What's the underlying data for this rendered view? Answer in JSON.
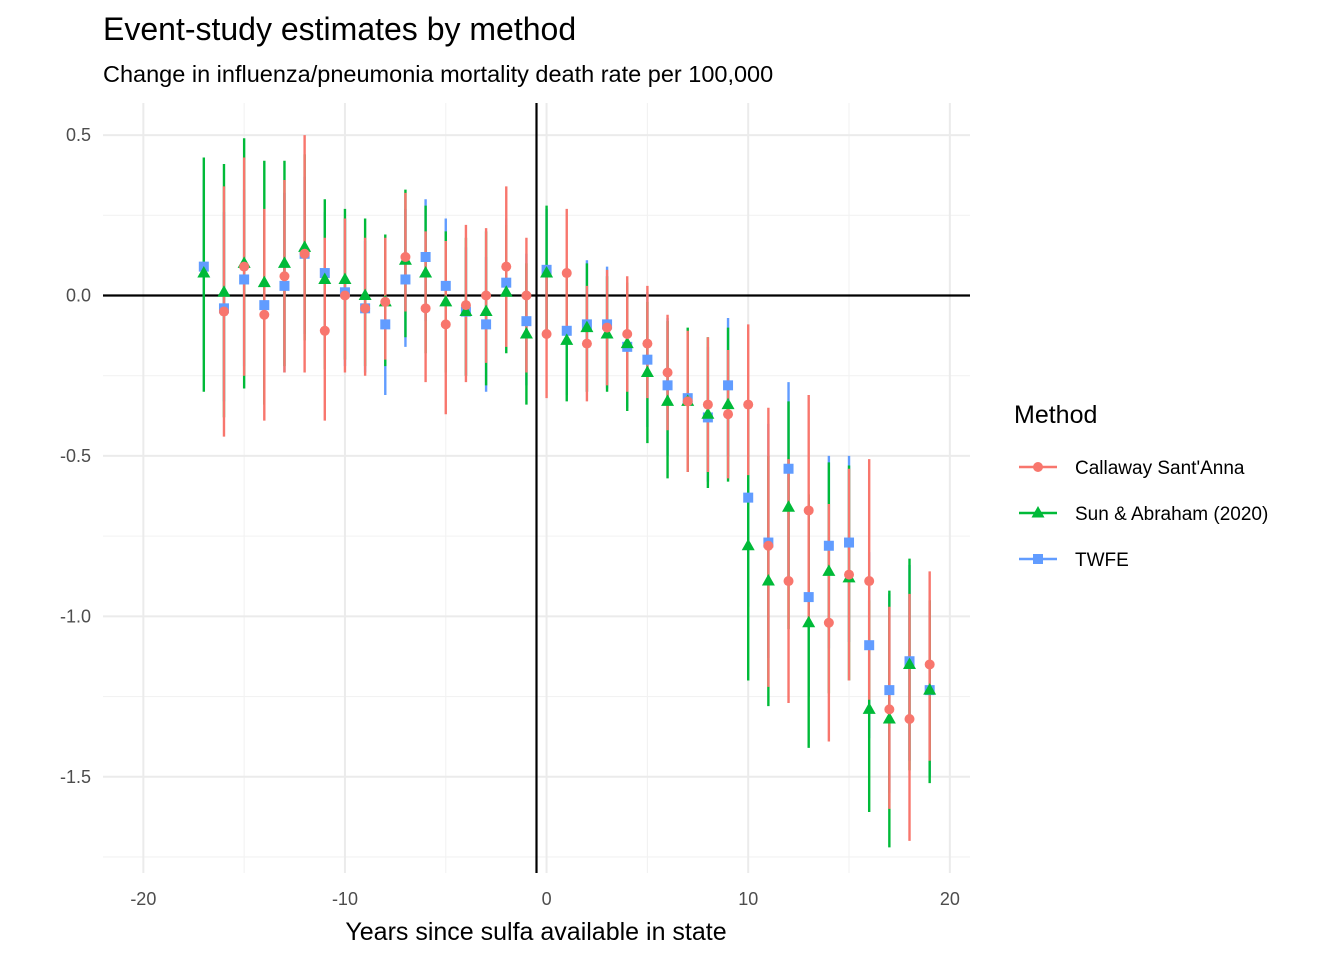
{
  "chart_data": {
    "type": "scatter",
    "title": "Event-study estimates by method",
    "subtitle": "Change in influenza/pneumonia mortality death rate per 100,000",
    "xlabel": "Years since sulfa available in state",
    "ylabel": "",
    "xlim": [
      -22,
      21
    ],
    "ylim": [
      -1.8,
      0.6
    ],
    "x_ticks": [
      -20,
      -10,
      0,
      10,
      20
    ],
    "x_tick_labels": [
      "-20",
      "-10",
      "0",
      "10",
      "20"
    ],
    "y_ticks": [
      -1.5,
      -1.0,
      -0.5,
      0.0,
      0.5
    ],
    "y_tick_labels": [
      "-1.5",
      "-1.0",
      "-0.5",
      "0.0",
      "0.5"
    ],
    "vline_x": -0.5,
    "hline_y": 0,
    "grid": true,
    "legend_title": "Method",
    "legend_position": "right",
    "series": [
      {
        "name": "Callaway Sant'Anna",
        "color": "#F8766D",
        "shape": "circle",
        "dodge": 0.0,
        "x": [
          -16,
          -15,
          -14,
          -13,
          -12,
          -11,
          -10,
          -9,
          -8,
          -7,
          -6,
          -5,
          -4,
          -3,
          -2,
          -1,
          0,
          1,
          2,
          3,
          4,
          5,
          6,
          7,
          8,
          9,
          10,
          11,
          12,
          13,
          14,
          15,
          16,
          17,
          18,
          19
        ],
        "y": [
          -0.05,
          0.09,
          -0.06,
          0.06,
          0.13,
          -0.11,
          0.0,
          -0.04,
          -0.02,
          0.12,
          -0.04,
          -0.09,
          -0.03,
          0.0,
          0.09,
          0.0,
          -0.12,
          0.07,
          -0.15,
          -0.1,
          -0.12,
          -0.15,
          -0.24,
          -0.33,
          -0.34,
          -0.37,
          -0.34,
          -0.78,
          -0.89,
          -0.67,
          -1.02,
          -0.87,
          -0.89,
          -1.29,
          -1.32,
          -1.15
        ],
        "lo": [
          -0.44,
          -0.25,
          -0.39,
          -0.24,
          -0.24,
          -0.39,
          -0.24,
          -0.25,
          -0.2,
          -0.05,
          -0.27,
          -0.37,
          -0.27,
          -0.21,
          -0.16,
          -0.24,
          -0.32,
          -0.14,
          -0.33,
          -0.28,
          -0.3,
          -0.32,
          -0.42,
          -0.55,
          -0.55,
          -0.57,
          -0.56,
          -1.22,
          -1.27,
          -1.02,
          -1.39,
          -1.2,
          -1.26,
          -1.6,
          -1.7,
          -1.45
        ],
        "hi": [
          0.34,
          0.43,
          0.27,
          0.36,
          0.5,
          0.18,
          0.24,
          0.18,
          0.18,
          0.32,
          0.2,
          0.17,
          0.22,
          0.21,
          0.34,
          0.18,
          0.08,
          0.27,
          0.03,
          0.08,
          0.06,
          0.03,
          -0.06,
          -0.11,
          -0.13,
          -0.17,
          -0.09,
          -0.35,
          -0.51,
          -0.31,
          -0.65,
          -0.54,
          -0.51,
          -0.97,
          -0.93,
          -0.86
        ]
      },
      {
        "name": "Sun & Abraham (2020)",
        "color": "#00BA38",
        "shape": "triangle",
        "dodge": 0.0,
        "x": [
          -17,
          -16,
          -15,
          -14,
          -13,
          -12,
          -11,
          -10,
          -9,
          -8,
          -7,
          -6,
          -5,
          -4,
          -3,
          -2,
          -1,
          0,
          1,
          2,
          3,
          4,
          5,
          6,
          7,
          8,
          9,
          10,
          11,
          12,
          13,
          14,
          15,
          16,
          17,
          18,
          19
        ],
        "y": [
          0.07,
          0.01,
          0.1,
          0.04,
          0.1,
          0.15,
          0.05,
          0.05,
          0.0,
          -0.02,
          0.11,
          0.07,
          -0.02,
          -0.05,
          -0.05,
          0.01,
          -0.12,
          0.07,
          -0.14,
          -0.1,
          -0.12,
          -0.15,
          -0.24,
          -0.33,
          -0.33,
          -0.37,
          -0.34,
          -0.78,
          -0.89,
          -0.66,
          -1.02,
          -0.86,
          -0.88,
          -1.29,
          -1.32,
          -1.15,
          -1.23
        ],
        "lo": [
          -0.3,
          -0.38,
          -0.29,
          -0.34,
          -0.22,
          -0.14,
          -0.23,
          -0.2,
          -0.22,
          -0.22,
          -0.13,
          -0.18,
          -0.24,
          -0.25,
          -0.28,
          -0.18,
          -0.34,
          -0.11,
          -0.33,
          -0.3,
          -0.3,
          -0.36,
          -0.46,
          -0.57,
          -0.55,
          -0.6,
          -0.58,
          -1.2,
          -1.28,
          -1.04,
          -1.41,
          -1.24,
          -1.2,
          -1.61,
          -1.72,
          -1.48,
          -1.52
        ],
        "hi": [
          0.43,
          0.41,
          0.49,
          0.42,
          0.42,
          0.44,
          0.3,
          0.27,
          0.24,
          0.19,
          0.33,
          0.28,
          0.2,
          0.18,
          0.2,
          0.22,
          0.1,
          0.28,
          0.06,
          0.1,
          0.06,
          0.04,
          -0.02,
          -0.08,
          -0.1,
          -0.13,
          -0.1,
          -0.35,
          -0.5,
          -0.33,
          -0.62,
          -0.52,
          -0.53,
          -0.95,
          -0.92,
          -0.82,
          -0.95
        ]
      },
      {
        "name": "TWFE",
        "color": "#619CFF",
        "shape": "square",
        "dodge": 0.0,
        "x": [
          -17,
          -16,
          -15,
          -14,
          -13,
          -12,
          -11,
          -10,
          -9,
          -8,
          -7,
          -6,
          -5,
          -4,
          -3,
          -2,
          -1,
          0,
          1,
          2,
          3,
          4,
          5,
          6,
          7,
          8,
          9,
          10,
          11,
          12,
          13,
          14,
          15,
          16,
          17,
          18,
          19
        ],
        "y": [
          0.09,
          -0.04,
          0.05,
          -0.03,
          0.03,
          0.13,
          0.07,
          0.01,
          -0.04,
          -0.09,
          0.05,
          0.12,
          0.03,
          -0.05,
          -0.09,
          0.04,
          -0.08,
          0.08,
          -0.11,
          -0.09,
          -0.09,
          -0.16,
          -0.2,
          -0.28,
          -0.32,
          -0.38,
          -0.28,
          -0.63,
          -0.77,
          -0.54,
          -0.94,
          -0.78,
          -0.77,
          -1.09,
          -1.23,
          -1.14,
          -1.23
        ],
        "lo": [
          -0.2,
          -0.33,
          -0.22,
          -0.29,
          -0.24,
          -0.12,
          -0.19,
          -0.22,
          -0.24,
          -0.31,
          -0.16,
          -0.08,
          -0.16,
          -0.25,
          -0.3,
          -0.16,
          -0.28,
          -0.11,
          -0.31,
          -0.3,
          -0.29,
          -0.35,
          -0.41,
          -0.5,
          -0.53,
          -0.58,
          -0.5,
          -0.97,
          -1.13,
          -0.9,
          -1.25,
          -1.1,
          -1.08,
          -1.38,
          -1.55,
          -1.45,
          -1.5
        ],
        "hi": [
          0.36,
          0.26,
          0.33,
          0.24,
          0.32,
          0.37,
          0.26,
          0.24,
          0.17,
          0.13,
          0.27,
          0.3,
          0.24,
          0.15,
          0.12,
          0.24,
          0.13,
          0.27,
          0.09,
          0.11,
          0.09,
          0.03,
          0.01,
          -0.07,
          -0.11,
          -0.16,
          -0.07,
          -0.33,
          -0.4,
          -0.27,
          -0.63,
          -0.5,
          -0.5,
          -0.8,
          -0.93,
          -0.84,
          -0.95
        ]
      }
    ]
  }
}
